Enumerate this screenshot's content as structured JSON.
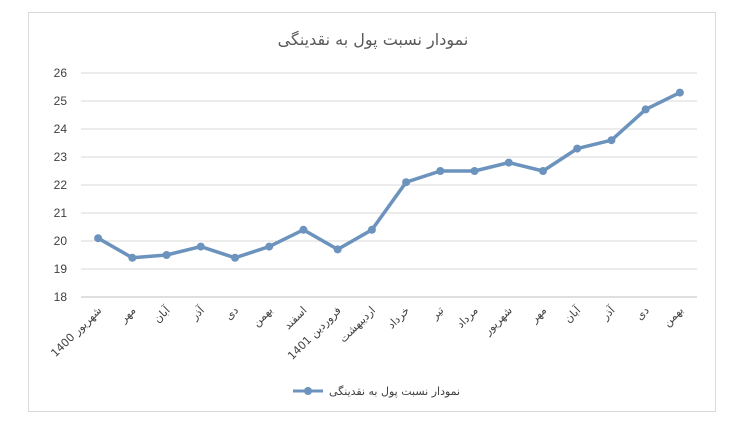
{
  "chart_data": {
    "type": "line",
    "title": "نمودار نسبت پول به نقدینگی",
    "categories": [
      "شهریور 1400",
      "مهر",
      "آبان",
      "آذر",
      "دی",
      "بهمن",
      "اسفند",
      "فروردین 1401",
      "اردیبهشت",
      "خرداد",
      "تیر",
      "مرداد",
      "شهریور",
      "مهر",
      "آبان",
      "آذر",
      "دی",
      "بهمن"
    ],
    "series": [
      {
        "name": "نمودار نسبت پول به نقدینگی",
        "values": [
          20.1,
          19.4,
          19.5,
          19.8,
          19.4,
          19.8,
          20.4,
          19.7,
          20.4,
          22.1,
          22.5,
          22.5,
          22.8,
          22.5,
          23.3,
          23.6,
          24.7,
          25.3
        ],
        "color": "#6b93bd"
      }
    ],
    "yticks": [
      "18",
      "19",
      "20",
      "21",
      "22",
      "23",
      "24",
      "25",
      "26"
    ],
    "ylim": [
      18,
      26
    ],
    "grid": true,
    "legend": "bottom"
  }
}
